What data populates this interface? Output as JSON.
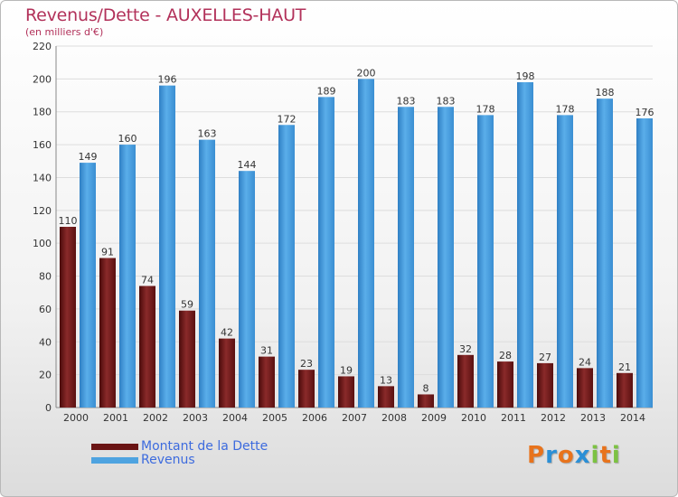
{
  "title": "Revenus/Dette - AUXELLES-HAUT",
  "subtitle": "(en milliers d'€)",
  "colors": {
    "dette": "#7a1f1f",
    "revenus": "#4ea3e0",
    "title": "#b2315a",
    "legend_text": "#3d6bde"
  },
  "legend": [
    {
      "label": "Montant de la Dette",
      "color": "#6a1414"
    },
    {
      "label": "Revenus",
      "color": "#4ea3e0"
    }
  ],
  "logo": {
    "letters": [
      "P",
      "r",
      "o",
      "x",
      "i",
      "t",
      "i"
    ],
    "colors": [
      "#e8731c",
      "#2b8fd6",
      "#e8731c",
      "#2b8fd6",
      "#7cc242",
      "#e8731c",
      "#7cc242"
    ]
  },
  "chart_data": {
    "type": "bar",
    "title": "Revenus/Dette - AUXELLES-HAUT",
    "ylabel": "(en milliers d'€)",
    "xlabel": "",
    "ylim": [
      0,
      220
    ],
    "yticks": [
      0,
      20,
      40,
      60,
      80,
      100,
      120,
      140,
      160,
      180,
      200,
      220
    ],
    "grid": true,
    "categories": [
      "2000",
      "2001",
      "2002",
      "2003",
      "2004",
      "2005",
      "2006",
      "2007",
      "2008",
      "2009",
      "2010",
      "2011",
      "2012",
      "2013",
      "2014"
    ],
    "series": [
      {
        "name": "Montant de la Dette",
        "values": [
          110,
          91,
          74,
          59,
          42,
          31,
          23,
          19,
          13,
          8,
          32,
          28,
          27,
          24,
          21
        ]
      },
      {
        "name": "Revenus",
        "values": [
          149,
          160,
          196,
          163,
          144,
          172,
          189,
          200,
          183,
          183,
          178,
          198,
          178,
          188,
          176
        ]
      }
    ]
  }
}
